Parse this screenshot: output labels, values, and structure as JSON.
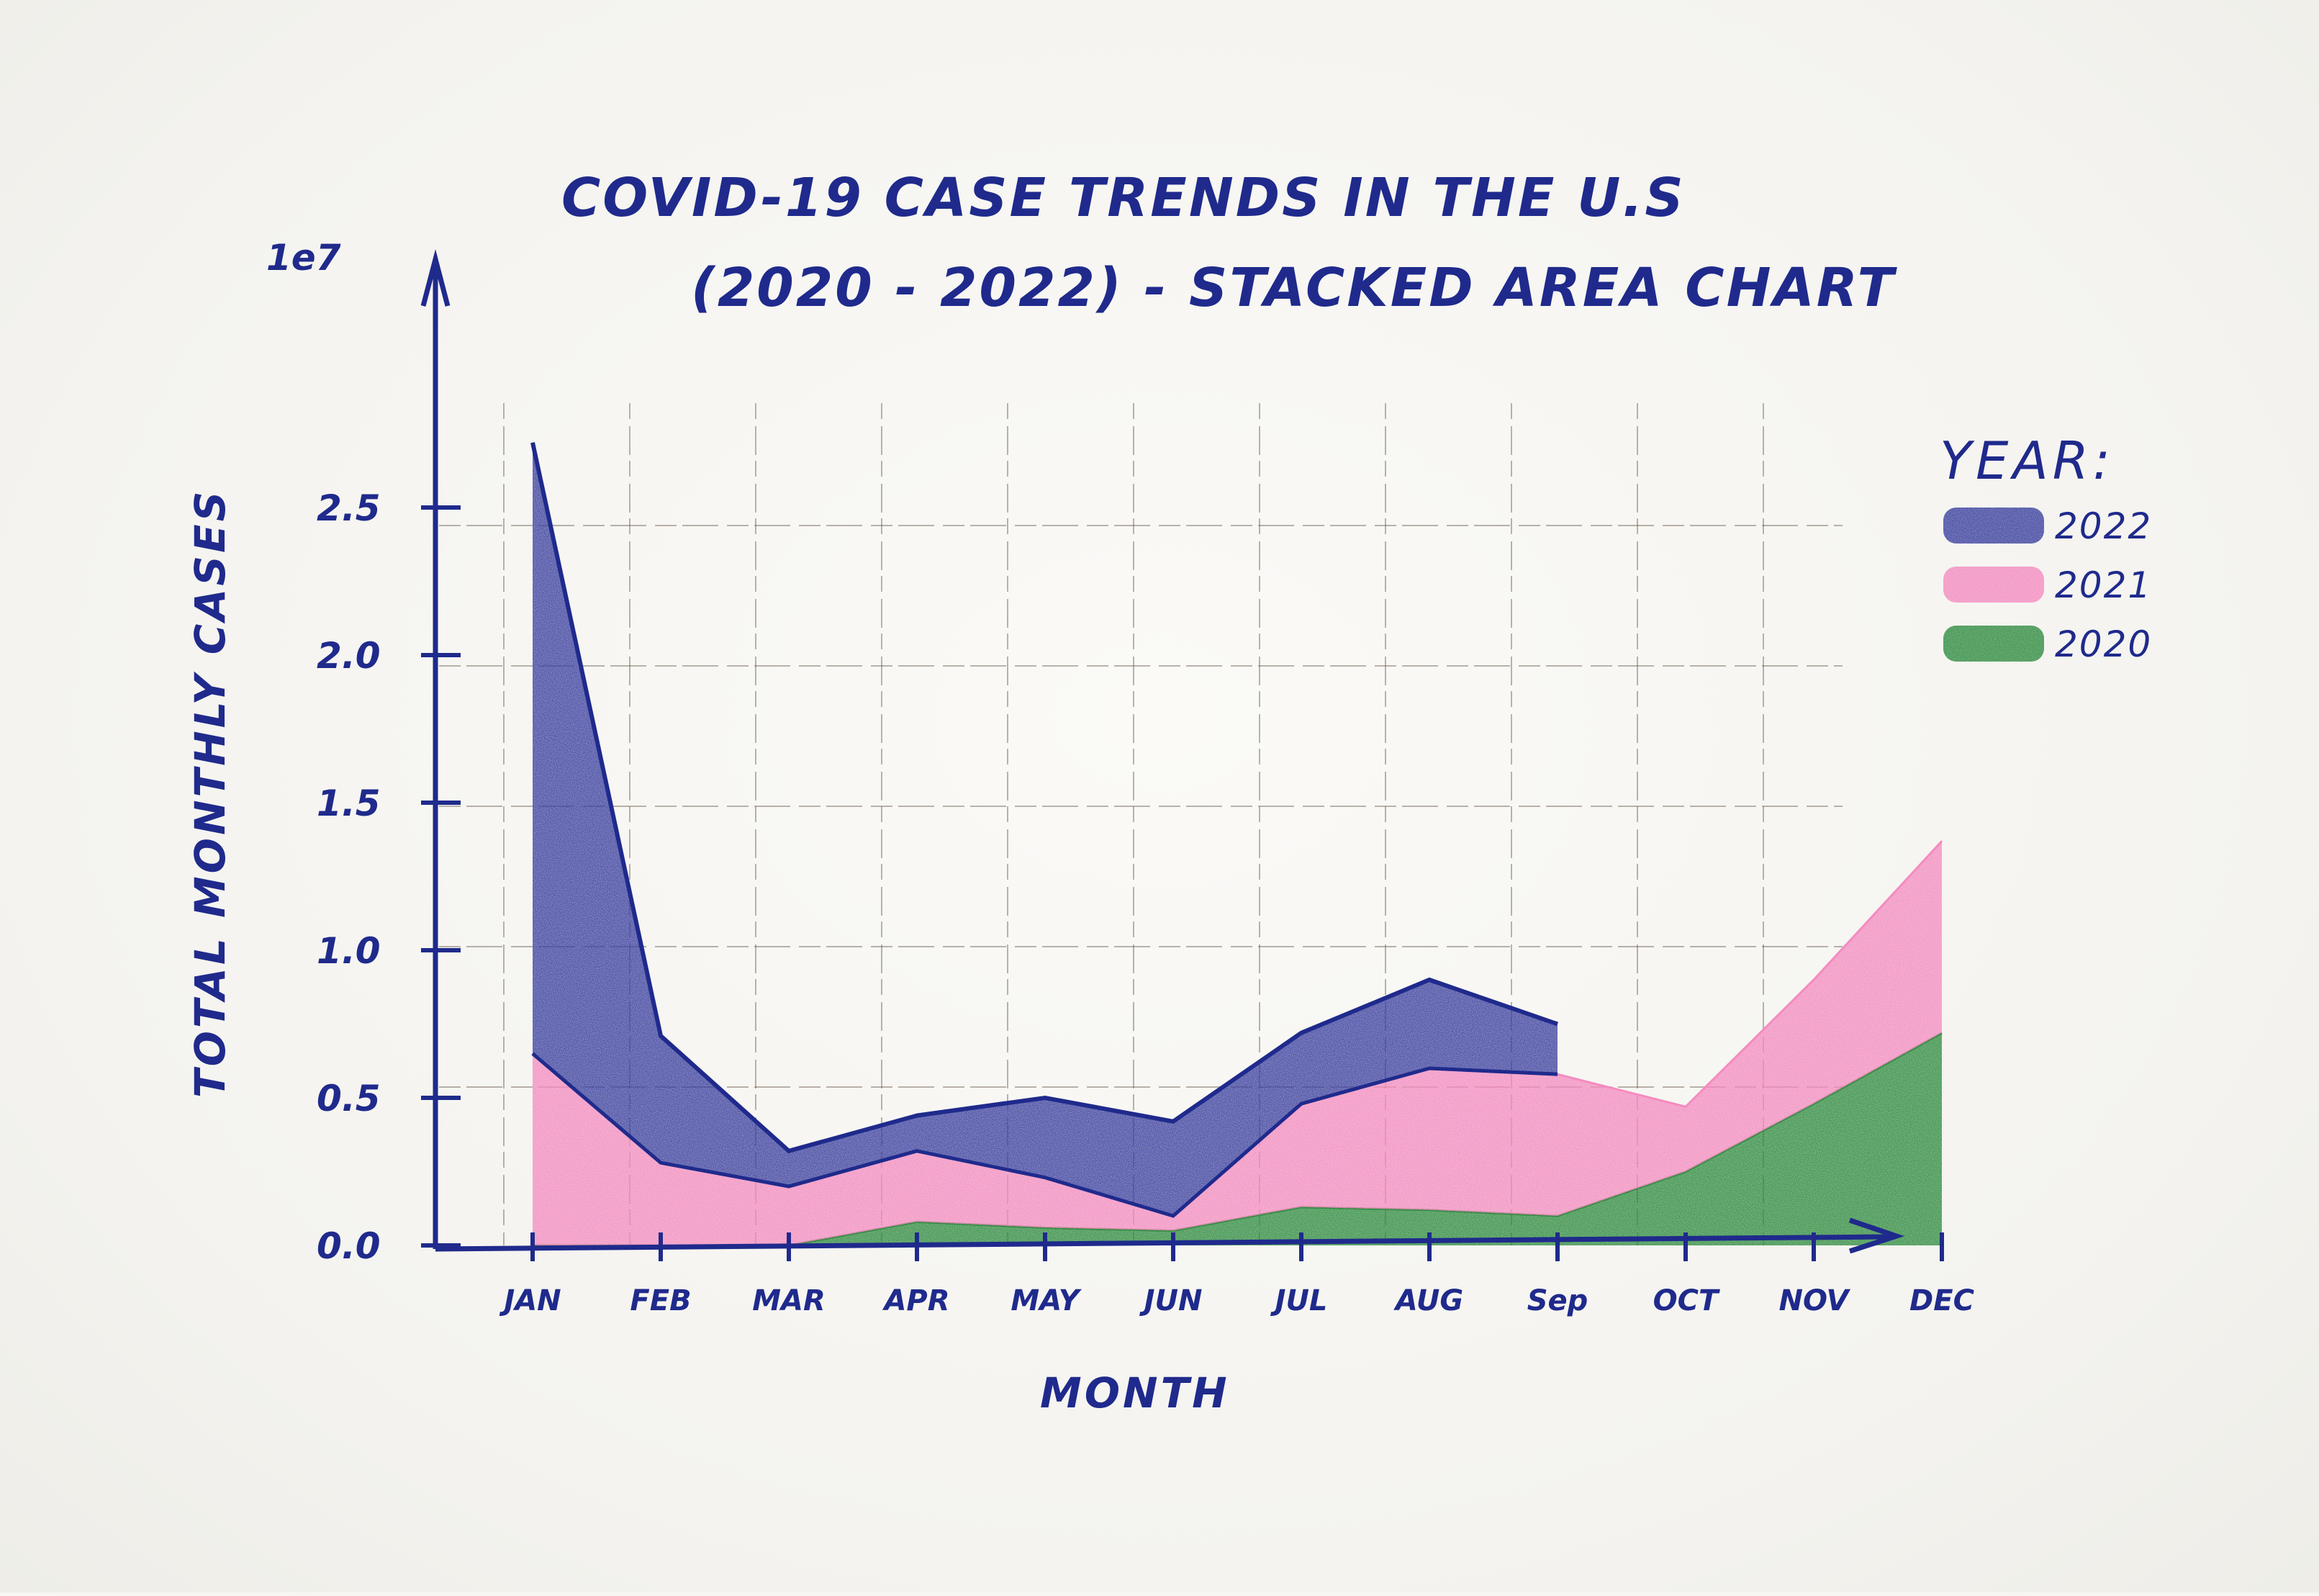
{
  "chart_data": {
    "type": "area",
    "stacked": true,
    "title_line1": "COVID-19 CASE TRENDS IN THE U.S",
    "title_line2": "(2020 - 2022) - STACKED AREA CHART",
    "xlabel": "MONTH",
    "ylabel": "TOTAL MONTHLY CASES",
    "y_multiplier": "1e7",
    "ylim": [
      0,
      3.0
    ],
    "yticks": [
      "0.0",
      "0.5",
      "1.0",
      "1.5",
      "2.0",
      "2.5"
    ],
    "categories": [
      "JAN",
      "FEB",
      "MAR",
      "APR",
      "MAY",
      "JUN",
      "JUL",
      "AUG",
      "Sep",
      "OCT",
      "NOV",
      "DEC"
    ],
    "grid": true,
    "legend": {
      "title": "YEAR:",
      "placement": "right"
    },
    "series": [
      {
        "name": "2020",
        "color": "#2e8b3f",
        "values": [
          0.0,
          0.0,
          0.0,
          0.08,
          0.06,
          0.05,
          0.13,
          0.12,
          0.1,
          0.25,
          0.48,
          0.72
        ]
      },
      {
        "name": "2021",
        "color": "#f48bc0",
        "values": [
          0.65,
          0.28,
          0.2,
          0.24,
          0.17,
          0.05,
          0.35,
          0.48,
          0.48,
          0.22,
          0.42,
          0.65
        ]
      },
      {
        "name": "2022",
        "color": "#3a3f9e",
        "values": [
          2.07,
          0.43,
          0.12,
          0.12,
          0.27,
          0.32,
          0.24,
          0.3,
          0.17,
          null,
          null,
          null
        ]
      }
    ]
  }
}
